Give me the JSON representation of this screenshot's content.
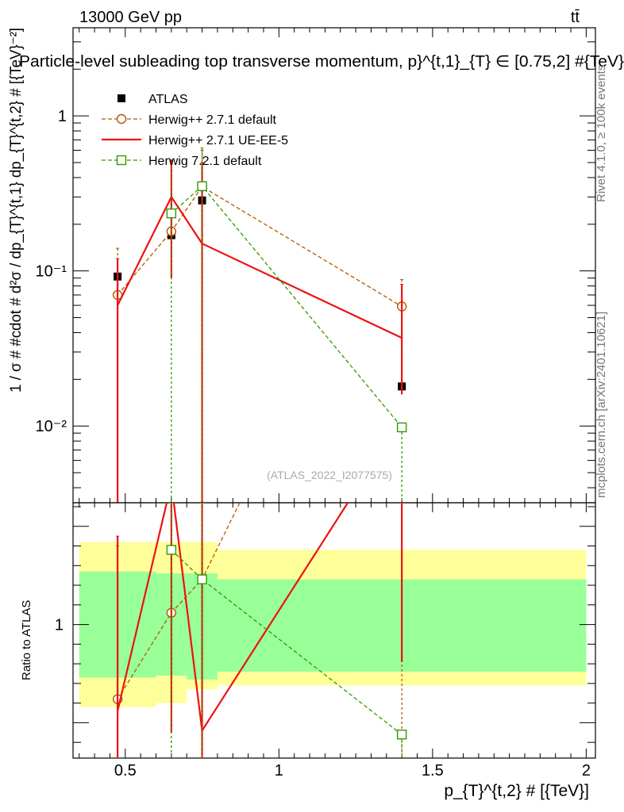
{
  "header": {
    "energy_label": "13000 GeV pp",
    "process_label": "tt̄",
    "title": "Particle-level subleading top transverse momentum, p}^{t,1}_{T} ∈ [0.75,2] #{TeV}"
  },
  "side_labels": {
    "rivet": "Rivet 4.1.0, ≥ 100k events",
    "mcplots": "mcplots.cern.ch [arXiv:2401.10621]"
  },
  "watermark": "(ATLAS_2022_I2077575)",
  "chart_data": {
    "type": "line",
    "xlabel": "p_{T}^{t,2} # [{TeV}]",
    "ylabel": "1 / σ # #cdot # d²σ / dp_{T}^{t,1} dp_{T}^{t,2} # [{TeV}⁻²]",
    "ratio_ylabel": "Ratio to ATLAS",
    "xlim": [
      0.33,
      2.03
    ],
    "ylim": [
      0.0032,
      3.7
    ],
    "yscale": "log",
    "ratio_ylim": [
      0.32,
      1.62
    ],
    "x_ticks": [
      {
        "value": 0.5,
        "label": "0.5"
      },
      {
        "value": 1.0,
        "label": "1"
      },
      {
        "value": 1.5,
        "label": "1.5"
      },
      {
        "value": 2.0,
        "label": "2"
      }
    ],
    "y_ticks": [
      {
        "value": 1,
        "label": "1"
      },
      {
        "value": 0.1,
        "label": "10⁻¹"
      },
      {
        "value": 0.01,
        "label": "10⁻²"
      }
    ],
    "ratio_y_ticks": [
      {
        "value": 1,
        "label": "1"
      }
    ],
    "bins": [
      {
        "low": 0.35,
        "high": 0.6
      },
      {
        "low": 0.6,
        "high": 0.7
      },
      {
        "low": 0.7,
        "high": 0.8
      },
      {
        "low": 0.8,
        "high": 2.0
      }
    ],
    "bands": {
      "inner": [
        [
          0.73,
          1.27
        ],
        [
          0.74,
          1.26
        ],
        [
          0.72,
          1.26
        ],
        [
          0.76,
          1.23
        ]
      ],
      "outer": [
        [
          0.58,
          1.42
        ],
        [
          0.6,
          1.42
        ],
        [
          0.67,
          1.42
        ],
        [
          0.69,
          1.38
        ]
      ],
      "inner_color": "#99ff99",
      "outer_color": "#ffff99"
    },
    "legend_position": "top-left",
    "series": [
      {
        "name": "ATLAS",
        "style": "data",
        "color": "#000000",
        "x": [
          0.475,
          0.65,
          0.75,
          1.4
        ],
        "y": [
          0.092,
          0.17,
          0.285,
          0.018
        ],
        "ratio": [
          1,
          1,
          1,
          1
        ]
      },
      {
        "name": "Herwig++ 2.7.1 default",
        "style": "dashed-circle",
        "color": "#b05a00",
        "x": [
          0.475,
          0.65,
          0.75,
          1.4
        ],
        "y": [
          0.07,
          0.18,
          0.35,
          0.059
        ],
        "ratio": [
          0.62,
          1.06,
          1.23,
          3.3
        ],
        "err_hi": [
          0.14,
          0.49,
          0.62,
          0.088
        ],
        "err_lo": [
          0.002,
          0.088,
          0.1,
          0.03
        ],
        "ratio_hi": [
          1.4,
          2.9,
          2.35,
          3.3
        ],
        "ratio_lo": [
          0.3,
          0.28,
          0.2,
          0.2
        ]
      },
      {
        "name": "Herwig++ 2.7.1 UE-EE-5",
        "style": "solid",
        "color": "#ee1111",
        "x": [
          0.475,
          0.65,
          0.75,
          1.4
        ],
        "y": [
          0.06,
          0.3,
          0.15,
          0.037
        ],
        "ratio": [
          0.56,
          1.72,
          0.46,
          2.05
        ],
        "err_hi": [
          0.12,
          0.52,
          0.5,
          0.082
        ],
        "err_lo": [
          0.001,
          0.09,
          0.001,
          0.016
        ],
        "ratio_hi": [
          1.45,
          2.9,
          2.35,
          2.4
        ],
        "ratio_lo": [
          0.2,
          0.45,
          0.2,
          0.81
        ]
      },
      {
        "name": "Herwig 7.2.1 default",
        "style": "dashed-square",
        "color": "#339900",
        "x": [
          0.475,
          0.65,
          0.75,
          1.4
        ],
        "y": [
          null,
          0.235,
          0.352,
          0.0098
        ],
        "ratio": [
          null,
          1.38,
          1.23,
          0.44
        ],
        "err_hi": [
          null,
          0.5,
          0.6,
          0.0098
        ],
        "err_lo": [
          null,
          0.002,
          0.002,
          0.002
        ],
        "ratio_hi": [
          null,
          2.2,
          2.25,
          0.44
        ],
        "ratio_lo": [
          null,
          0.2,
          0.2,
          0.2
        ]
      }
    ]
  }
}
